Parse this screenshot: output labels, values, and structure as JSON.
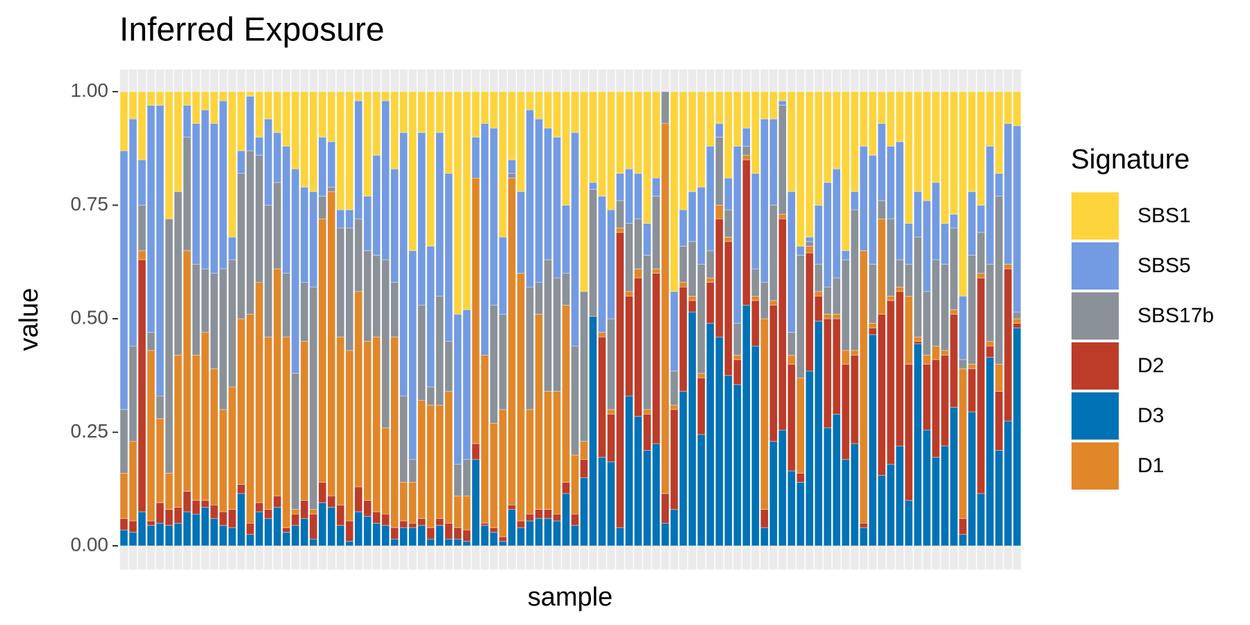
{
  "chart_data": {
    "type": "stacked_bar",
    "title": "Inferred Exposure",
    "x_label": "sample",
    "y_label": "value",
    "legend_title": "Signature",
    "legend": "right",
    "grid": true,
    "ylim": [
      0,
      1
    ],
    "yticks": [
      {
        "value": 0,
        "label": "0.00"
      },
      {
        "value": 0.25,
        "label": "0.25"
      },
      {
        "value": 0.5,
        "label": "0.50"
      },
      {
        "value": 0.75,
        "label": "0.75"
      },
      {
        "value": 1,
        "label": "1.00"
      }
    ],
    "categories": [
      null,
      null,
      null,
      null,
      null,
      null,
      null,
      null,
      null,
      null,
      null,
      null,
      null,
      null,
      null,
      null,
      null,
      null,
      null,
      null,
      null,
      null,
      null,
      null,
      null,
      null,
      null,
      null,
      null,
      null,
      null,
      null,
      null,
      null,
      null,
      null,
      null,
      null,
      null,
      null,
      null,
      null,
      null,
      null,
      null,
      null,
      null,
      null,
      null,
      null,
      null,
      null,
      null,
      null,
      null,
      null,
      null,
      null,
      null,
      null,
      null,
      null,
      null,
      null,
      null,
      null,
      null,
      null,
      null,
      null,
      null,
      null,
      null,
      null,
      null,
      null,
      null,
      null,
      null,
      null,
      null,
      null,
      null,
      null,
      null,
      null,
      null,
      null,
      null,
      null,
      null,
      null,
      null,
      null,
      null,
      null,
      null,
      null,
      null,
      null
    ],
    "series": [
      {
        "name": "SBS1",
        "color": "#fdd43c",
        "values": [
          0.13,
          0.06,
          0.15,
          0.03,
          0.03,
          0.28,
          0.22,
          0.03,
          0.07,
          0.04,
          0.07,
          0.02,
          0.32,
          0.13,
          0.01,
          0.1,
          0.06,
          0.09,
          0.12,
          0.17,
          0.21,
          0.22,
          0.1,
          0.11,
          0.26,
          0.26,
          0.02,
          0.23,
          0.14,
          0.02,
          0.17,
          0.09,
          0.35,
          0.09,
          0.34,
          0.09,
          0.18,
          0.49,
          0.48,
          0.1,
          0.07,
          0.08,
          0.32,
          0.15,
          0.22,
          0.04,
          0.06,
          0.08,
          0.1,
          0.25,
          0.09,
          0.44,
          0.2,
          0.23,
          0.26,
          0.18,
          0.17,
          0.18,
          0.29,
          0.19,
          0,
          0.44,
          0.26,
          0.22,
          0.21,
          0.12,
          0.07,
          0.19,
          0.12,
          0.08,
          0.18,
          0.06,
          0.06,
          0.02,
          0.22,
          0.34,
          0.32,
          0.25,
          0.2,
          0.17,
          0.35,
          0.22,
          0.12,
          0.14,
          0.07,
          0.12,
          0.11,
          0.29,
          0.22,
          0.24,
          0.2,
          0.29,
          0.27,
          0.45,
          0.22,
          0.25,
          0.12,
          0.18,
          0.07,
          0.075
        ]
      },
      {
        "name": "SBS5",
        "color": "#739be2",
        "values": [
          0.57,
          0.5,
          0.1,
          0.5,
          0.64,
          0,
          0,
          0.07,
          0.31,
          0.35,
          0.33,
          0.37,
          0.05,
          0.05,
          0.12,
          0.04,
          0.19,
          0.11,
          0.28,
          0.45,
          0.21,
          0.21,
          0.13,
          0.1,
          0.04,
          0.04,
          0.26,
          0.12,
          0.22,
          0.35,
          0.25,
          0.58,
          0.46,
          0.38,
          0.31,
          0.36,
          0.37,
          0.33,
          0.33,
          0.09,
          0.51,
          0.39,
          0.17,
          0.03,
          0.18,
          0.39,
          0.36,
          0.29,
          0.31,
          0.15,
          0.47,
          0,
          0.015,
          0.3,
          0.24,
          0.06,
          0.12,
          0.1,
          0.07,
          0.04,
          0,
          0.175,
          0.08,
          0.11,
          0.17,
          0.23,
          0.03,
          0.07,
          0.39,
          0.04,
          0.21,
          0.36,
          0.19,
          0.01,
          0.31,
          0.02,
          0.01,
          0.13,
          0.23,
          0.24,
          0.02,
          0.04,
          0.23,
          0.24,
          0.17,
          0.16,
          0.26,
          0.09,
          0.1,
          0.2,
          0.17,
          0.09,
          0.03,
          0.14,
          0.14,
          0.06,
          0.26,
          0.05,
          0.31,
          0.41
        ]
      },
      {
        "name": "SBS17b",
        "color": "#8a9198",
        "values": [
          0.14,
          0.21,
          0.1,
          0.04,
          0.05,
          0.56,
          0.36,
          0.25,
          0.2,
          0.14,
          0.21,
          0.31,
          0.28,
          0.32,
          0.36,
          0.28,
          0.29,
          0.19,
          0.14,
          0.3,
          0.13,
          0.49,
          0.05,
          0.01,
          0.24,
          0.27,
          0.16,
          0.2,
          0.18,
          0.37,
          0.12,
          0.19,
          0.05,
          0.21,
          0.04,
          0.24,
          0.11,
          0.07,
          0.08,
          0,
          0,
          0.26,
          0.21,
          0.01,
          0,
          0.27,
          0.07,
          0.29,
          0.25,
          0.07,
          0.24,
          0.33,
          0.28,
          0,
          0.2,
          0.06,
          0.15,
          0.11,
          0.34,
          0.16,
          0.07,
          0.075,
          0.08,
          0.12,
          0.24,
          0.06,
          0.15,
          0.06,
          0.07,
          0.02,
          0.06,
          0.08,
          0.21,
          0.24,
          0.05,
          0.27,
          0.01,
          0.06,
          0.06,
          0.08,
          0.2,
          0.31,
          0,
          0.13,
          0.04,
          0.17,
          0.06,
          0.07,
          0.22,
          0.14,
          0.19,
          0.19,
          0.18,
          0.02,
          0.24,
          0.09,
          0.17,
          0.37,
          0,
          0.015
        ]
      },
      {
        "name": "D2",
        "color": "#bc3c29",
        "values": [
          0.025,
          0.025,
          0.555,
          0.01,
          0.045,
          0.035,
          0.035,
          0.045,
          0.03,
          0.015,
          0.03,
          0.03,
          0.04,
          0.02,
          0.025,
          0.02,
          0.02,
          0.025,
          0.01,
          0.025,
          0.04,
          0.055,
          0.045,
          0.025,
          0.045,
          0.045,
          0.055,
          0.035,
          0.025,
          0.025,
          0.025,
          0.015,
          0.01,
          0.015,
          0.025,
          0.015,
          0.035,
          0.025,
          0.025,
          0.035,
          0.005,
          0.01,
          0.01,
          0.01,
          0.015,
          0.015,
          0.02,
          0.02,
          0.015,
          0.025,
          0.025,
          0.04,
          0,
          0.265,
          0.105,
          0.65,
          0.22,
          0.305,
          0.08,
          0.375,
          0.065,
          0.22,
          0.23,
          0.025,
          0.125,
          0.09,
          0.26,
          0.295,
          0.055,
          0.32,
          0.1,
          0.04,
          0.3,
          0.465,
          0.235,
          0.02,
          0.26,
          0.055,
          0.24,
          0.21,
          0.21,
          0.195,
          0.01,
          0.015,
          0.355,
          0.36,
          0.34,
          0.3,
          0.005,
          0.145,
          0.215,
          0.2,
          0.205,
          0.035,
          0.095,
          0.475,
          0.025,
          0.13,
          0.335,
          0.01
        ]
      },
      {
        "name": "D3",
        "color": "#0072b5",
        "values": [
          0.035,
          0.03,
          0.075,
          0.045,
          0.05,
          0.045,
          0.05,
          0.075,
          0.07,
          0.085,
          0.06,
          0.045,
          0.04,
          0.115,
          0.025,
          0.075,
          0.06,
          0.085,
          0.03,
          0.045,
          0.06,
          0.015,
          0.095,
          0.085,
          0.045,
          0.01,
          0.075,
          0.065,
          0.05,
          0.045,
          0.015,
          0.04,
          0.04,
          0.045,
          0.015,
          0.045,
          0.015,
          0.015,
          0.01,
          0.19,
          0.045,
          0.03,
          0.01,
          0.08,
          0.04,
          0.055,
          0.06,
          0.06,
          0.055,
          0.115,
          0.045,
          0.15,
          0.505,
          0.195,
          0.185,
          0.04,
          0.33,
          0.285,
          0.21,
          0.225,
          0.05,
          0.08,
          0.34,
          0.515,
          0.245,
          0.49,
          0.46,
          0.375,
          0.355,
          0.53,
          0.44,
          0.04,
          0.23,
          0.255,
          0.165,
          0.14,
          0.385,
          0.495,
          0.26,
          0.29,
          0.19,
          0.225,
          0.04,
          0.465,
          0.155,
          0.18,
          0.22,
          0.1,
          0.445,
          0.255,
          0.195,
          0.22,
          0.305,
          0.025,
          0.295,
          0.115,
          0.415,
          0.21,
          0.275,
          0.48
        ]
      },
      {
        "name": "D1",
        "color": "#e1872a",
        "values": [
          0.1,
          0.175,
          0.02,
          0.375,
          0.185,
          0.08,
          0.335,
          0.53,
          0.32,
          0.37,
          0.3,
          0.225,
          0.27,
          0.365,
          0.46,
          0.485,
          0.38,
          0.5,
          0.42,
          0.01,
          0.35,
          0.01,
          0.58,
          0.67,
          0.37,
          0.375,
          0.43,
          0.35,
          0.385,
          0.19,
          0.42,
          0.085,
          0.09,
          0.26,
          0.27,
          0.25,
          0.29,
          0.07,
          0.075,
          0.585,
          0.37,
          0.23,
          0.28,
          0.72,
          0.545,
          0.23,
          0.43,
          0.26,
          0.27,
          0.39,
          0.13,
          0.04,
          0,
          0.01,
          0.01,
          0.01,
          0.01,
          0.02,
          0.01,
          0.01,
          0.815,
          0.01,
          0.01,
          0.01,
          0.01,
          0.01,
          0.03,
          0.01,
          0.01,
          0.01,
          0.01,
          0.42,
          0.01,
          0.01,
          0.02,
          0.21,
          0.015,
          0.01,
          0.01,
          0.01,
          0.03,
          0.01,
          0.6,
          0.01,
          0.21,
          0.01,
          0.01,
          0.15,
          0.01,
          0.02,
          0.03,
          0.01,
          0.01,
          0.33,
          0.01,
          0.01,
          0.01,
          0.06,
          0.01,
          0.01
        ]
      }
    ]
  }
}
